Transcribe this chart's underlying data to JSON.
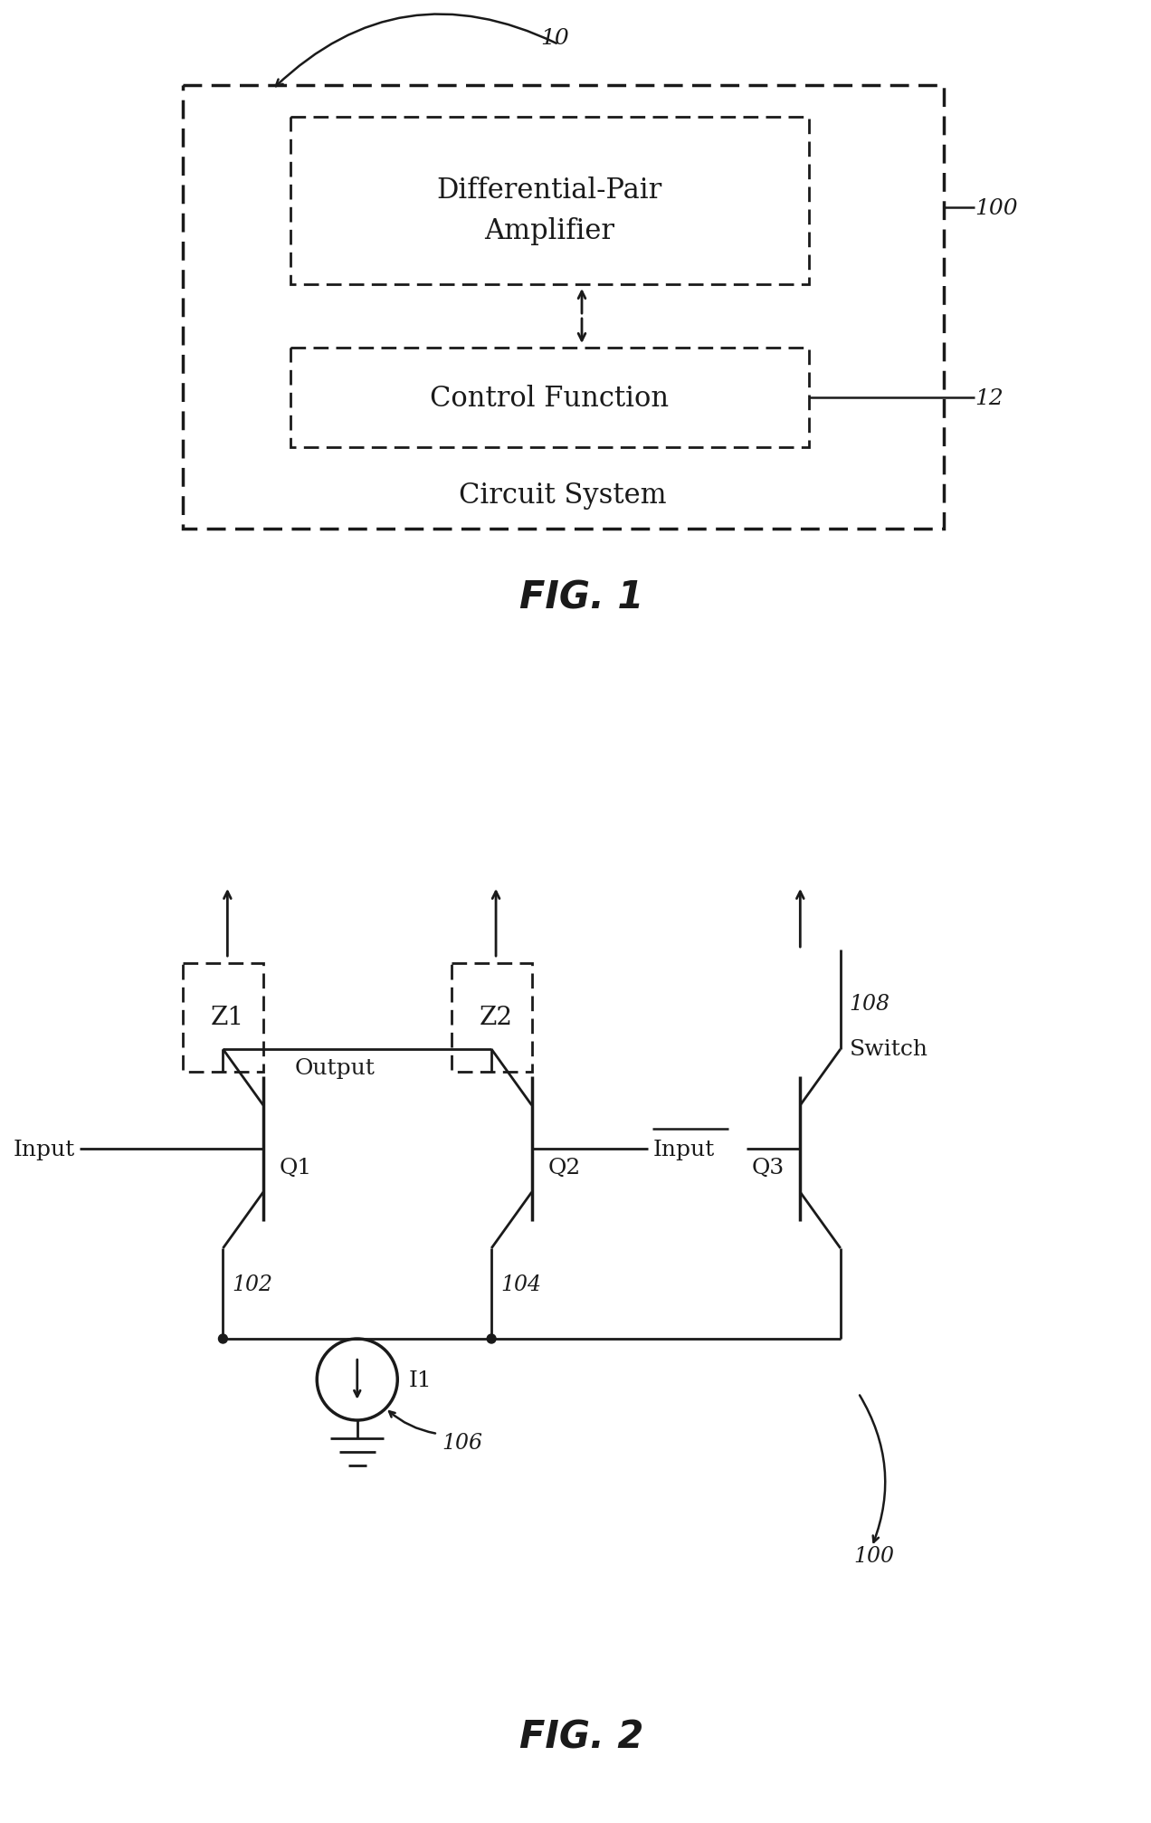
{
  "bg_color": "#ffffff",
  "line_color": "#1a1a1a",
  "fig1_caption": "FIG. 1",
  "fig2_caption": "FIG. 2",
  "label_10": "10",
  "label_100": "100",
  "label_12": "12",
  "label_102": "102",
  "label_104": "104",
  "label_106": "106",
  "label_108": "108",
  "label_Q1": "Q1",
  "label_Q2": "Q2",
  "label_Q3": "Q3",
  "label_Z1": "Z1",
  "label_Z2": "Z2",
  "label_I1": "I1",
  "label_Input": "Input",
  "label_Output": "Output",
  "label_Switch": "Switch",
  "label_DPA": "Differential-Pair\nAmplifier",
  "label_CF": "Control Function",
  "label_CS": "Circuit System"
}
